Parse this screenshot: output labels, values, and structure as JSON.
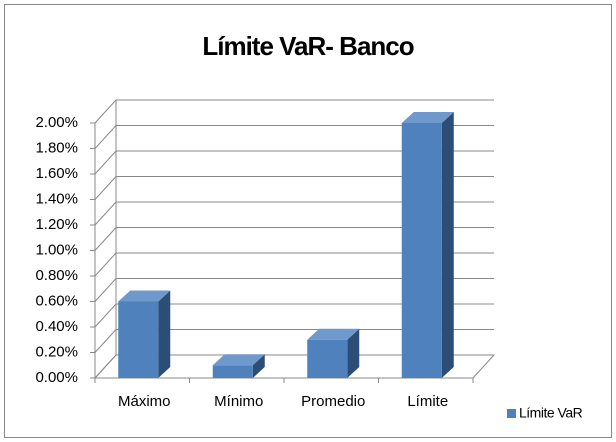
{
  "chart_data": {
    "type": "bar3d",
    "title": "Límite VaR- Banco",
    "categories": [
      "Máximo",
      "Mínimo",
      "Promedio",
      "Límite"
    ],
    "series": [
      {
        "name": "Límite VaR",
        "color": "#4f81bd",
        "values": [
          0.6,
          0.1,
          0.3,
          2.0
        ]
      }
    ],
    "ylim": [
      0,
      2.0
    ],
    "yticks": [
      {
        "value": 0,
        "label": "0.00%"
      },
      {
        "value": 0.2,
        "label": "0.20%"
      },
      {
        "value": 0.4,
        "label": "0.40%"
      },
      {
        "value": 0.6,
        "label": "0.60%"
      },
      {
        "value": 0.8,
        "label": "0.80%"
      },
      {
        "value": 1.0,
        "label": "1.00%"
      },
      {
        "value": 1.2,
        "label": "1.20%"
      },
      {
        "value": 1.4,
        "label": "1.40%"
      },
      {
        "value": 1.6,
        "label": "1.60%"
      },
      {
        "value": 1.8,
        "label": "1.80%"
      },
      {
        "value": 2.0,
        "label": "2.00%"
      }
    ],
    "grid": true,
    "legend": "right"
  }
}
